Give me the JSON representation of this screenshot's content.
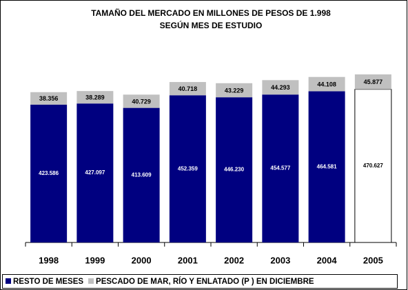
{
  "chart_data": {
    "type": "stacked_bar",
    "title": "TAMAÑO DEL MERCADO EN MILLONES DE PESOS DE 1.998",
    "subtitle": "SEGÚN MES DE ESTUDIO",
    "categories": [
      "1998",
      "1999",
      "2000",
      "2001",
      "2002",
      "2003",
      "2004",
      "2005"
    ],
    "series": [
      {
        "name": "RESTO DE MESES",
        "color": "#000080",
        "point_colors": [
          "#000080",
          "#000080",
          "#000080",
          "#000080",
          "#000080",
          "#000080",
          "#000080",
          "#ffffff"
        ],
        "values": [
          423586,
          427097,
          413609,
          452359,
          446230,
          454577,
          464581,
          470627
        ],
        "value_labels": [
          "423.586",
          "427.097",
          "413.609",
          "452.359",
          "446.230",
          "454.577",
          "464.581",
          "470.627"
        ]
      },
      {
        "name": "PESCADO DE MAR, RÍO Y ENLATADO (P ) EN DICIEMBRE",
        "color": "#c0c0c0",
        "values": [
          38356,
          38289,
          40729,
          40718,
          43229,
          44293,
          44108,
          45877
        ],
        "value_labels": [
          "38.356",
          "38.289",
          "40.729",
          "40.718",
          "43.229",
          "44.293",
          "44.108",
          "45.877"
        ]
      }
    ],
    "legend": "bottom"
  }
}
